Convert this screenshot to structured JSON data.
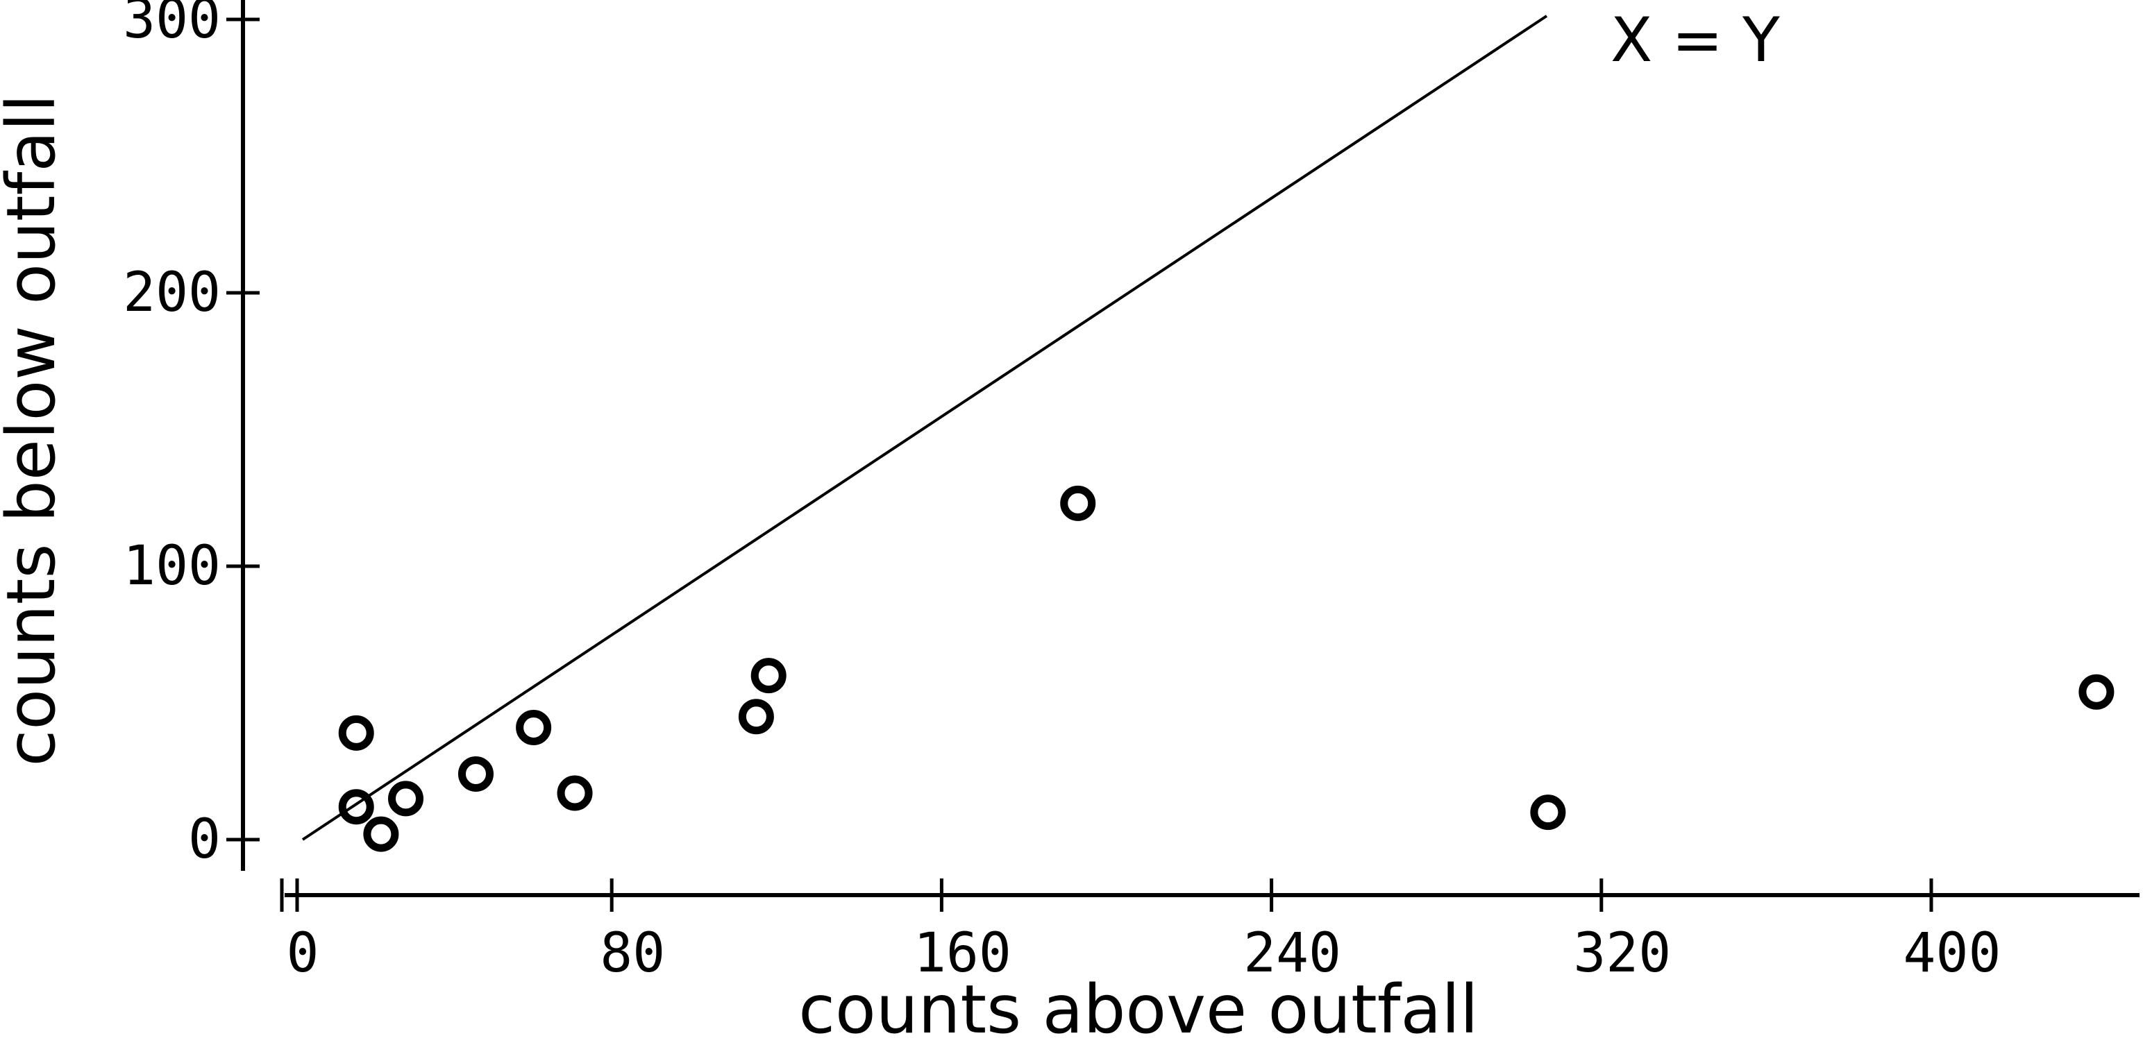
{
  "chart_data": {
    "type": "scatter",
    "title": "",
    "xlabel": "counts above outfall",
    "ylabel": "counts below outfall",
    "xlim": [
      -8,
      452
    ],
    "ylim": [
      -10,
      308
    ],
    "xticks": [
      0,
      80,
      160,
      240,
      320,
      400
    ],
    "xtick_labels": [
      "0",
      "80",
      "160",
      "240",
      "320",
      "400"
    ],
    "yticks": [
      0,
      100,
      200,
      300
    ],
    "ytick_labels": [
      "0",
      "100",
      "200",
      "300"
    ],
    "grid": false,
    "reference_line": {
      "label": "X = Y",
      "x": [
        0,
        300
      ],
      "y": [
        0,
        300
      ]
    },
    "series": [
      {
        "marker": "open-circle",
        "x": [
          13,
          13,
          19,
          25,
          42,
          56,
          66,
          110,
          113,
          188,
          302,
          435
        ],
        "y": [
          39,
          12,
          2,
          15,
          24,
          41,
          17,
          45,
          60,
          123,
          10,
          54
        ]
      }
    ]
  }
}
